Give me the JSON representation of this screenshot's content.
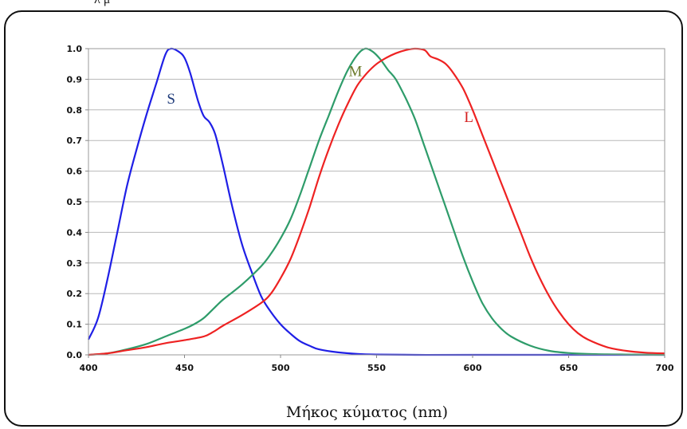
{
  "top_fragment": "λ μ",
  "chart_data": {
    "type": "line",
    "xlabel": "Μήκος κύματος (nm)",
    "ylabel": "",
    "title": "",
    "xlim": [
      400,
      700
    ],
    "ylim": [
      0,
      1.0
    ],
    "xticks": [
      "400",
      "450",
      "500",
      "550",
      "600",
      "650",
      "700"
    ],
    "yticks": [
      "0.0",
      "0.1",
      "0.2",
      "0.3",
      "0.4",
      "0.5",
      "0.6",
      "0.7",
      "0.8",
      "0.9",
      "1.0"
    ],
    "grid": "horizontal",
    "series": [
      {
        "name": "S",
        "color": "#1f1fe6",
        "label_color": "#1f3b7a",
        "label_pos": [
          443,
          0.82
        ],
        "points": [
          [
            400,
            0.05
          ],
          [
            405,
            0.12
          ],
          [
            410,
            0.25
          ],
          [
            415,
            0.4
          ],
          [
            420,
            0.55
          ],
          [
            425,
            0.67
          ],
          [
            430,
            0.78
          ],
          [
            435,
            0.88
          ],
          [
            440,
            0.98
          ],
          [
            443,
            1.0
          ],
          [
            447,
            0.99
          ],
          [
            450,
            0.97
          ],
          [
            453,
            0.92
          ],
          [
            457,
            0.83
          ],
          [
            460,
            0.78
          ],
          [
            463,
            0.76
          ],
          [
            466,
            0.72
          ],
          [
            470,
            0.62
          ],
          [
            475,
            0.48
          ],
          [
            480,
            0.36
          ],
          [
            485,
            0.27
          ],
          [
            490,
            0.19
          ],
          [
            495,
            0.14
          ],
          [
            500,
            0.1
          ],
          [
            505,
            0.07
          ],
          [
            510,
            0.045
          ],
          [
            515,
            0.03
          ],
          [
            520,
            0.018
          ],
          [
            530,
            0.008
          ],
          [
            540,
            0.003
          ],
          [
            550,
            0.001
          ],
          [
            570,
            0.0
          ],
          [
            600,
            0.0
          ],
          [
            700,
            0.0
          ]
        ]
      },
      {
        "name": "M",
        "color": "#2e9c6a",
        "label_color": "#6b7a2a",
        "label_pos": [
          539,
          0.91
        ],
        "points": [
          [
            400,
            0.0
          ],
          [
            410,
            0.005
          ],
          [
            420,
            0.018
          ],
          [
            430,
            0.035
          ],
          [
            440,
            0.06
          ],
          [
            450,
            0.085
          ],
          [
            455,
            0.1
          ],
          [
            460,
            0.12
          ],
          [
            465,
            0.15
          ],
          [
            470,
            0.18
          ],
          [
            480,
            0.23
          ],
          [
            490,
            0.29
          ],
          [
            495,
            0.33
          ],
          [
            500,
            0.38
          ],
          [
            505,
            0.44
          ],
          [
            510,
            0.52
          ],
          [
            515,
            0.61
          ],
          [
            520,
            0.7
          ],
          [
            525,
            0.78
          ],
          [
            530,
            0.86
          ],
          [
            535,
            0.93
          ],
          [
            540,
            0.98
          ],
          [
            544,
            1.0
          ],
          [
            548,
            0.99
          ],
          [
            552,
            0.965
          ],
          [
            556,
            0.93
          ],
          [
            560,
            0.9
          ],
          [
            565,
            0.84
          ],
          [
            570,
            0.77
          ],
          [
            575,
            0.68
          ],
          [
            580,
            0.59
          ],
          [
            585,
            0.5
          ],
          [
            590,
            0.41
          ],
          [
            595,
            0.32
          ],
          [
            600,
            0.24
          ],
          [
            605,
            0.17
          ],
          [
            610,
            0.12
          ],
          [
            615,
            0.085
          ],
          [
            620,
            0.06
          ],
          [
            630,
            0.03
          ],
          [
            640,
            0.013
          ],
          [
            650,
            0.006
          ],
          [
            660,
            0.003
          ],
          [
            680,
            0.001
          ],
          [
            700,
            0.0
          ]
        ]
      },
      {
        "name": "L",
        "color": "#ee2222",
        "label_color": "#d42020",
        "label_pos": [
          598,
          0.76
        ],
        "points": [
          [
            400,
            0.0
          ],
          [
            410,
            0.005
          ],
          [
            420,
            0.015
          ],
          [
            430,
            0.025
          ],
          [
            440,
            0.038
          ],
          [
            450,
            0.048
          ],
          [
            460,
            0.06
          ],
          [
            465,
            0.075
          ],
          [
            470,
            0.095
          ],
          [
            480,
            0.13
          ],
          [
            490,
            0.17
          ],
          [
            495,
            0.2
          ],
          [
            500,
            0.25
          ],
          [
            505,
            0.31
          ],
          [
            510,
            0.39
          ],
          [
            515,
            0.48
          ],
          [
            520,
            0.58
          ],
          [
            525,
            0.67
          ],
          [
            530,
            0.75
          ],
          [
            535,
            0.82
          ],
          [
            540,
            0.88
          ],
          [
            545,
            0.92
          ],
          [
            550,
            0.95
          ],
          [
            555,
            0.97
          ],
          [
            560,
            0.985
          ],
          [
            565,
            0.995
          ],
          [
            570,
            1.0
          ],
          [
            575,
            0.995
          ],
          [
            578,
            0.975
          ],
          [
            582,
            0.965
          ],
          [
            586,
            0.95
          ],
          [
            590,
            0.92
          ],
          [
            595,
            0.87
          ],
          [
            600,
            0.8
          ],
          [
            605,
            0.72
          ],
          [
            610,
            0.64
          ],
          [
            615,
            0.56
          ],
          [
            620,
            0.48
          ],
          [
            625,
            0.4
          ],
          [
            630,
            0.32
          ],
          [
            635,
            0.25
          ],
          [
            640,
            0.19
          ],
          [
            645,
            0.14
          ],
          [
            650,
            0.1
          ],
          [
            655,
            0.07
          ],
          [
            660,
            0.05
          ],
          [
            670,
            0.025
          ],
          [
            680,
            0.013
          ],
          [
            690,
            0.007
          ],
          [
            700,
            0.005
          ]
        ]
      }
    ]
  }
}
